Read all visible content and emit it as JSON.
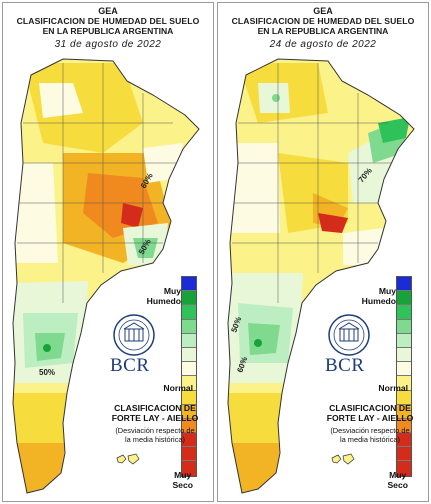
{
  "panels": [
    {
      "id": "left",
      "org": "GEA",
      "title_line1": "CLASIFICACION DE HUMEDAD DEL SUELO",
      "title_line2": "EN LA REPUBLICA ARGENTINA",
      "date": "31 de agosto de 2022",
      "contour_labels": [
        "60%",
        "50%",
        "50%"
      ]
    },
    {
      "id": "right",
      "org": "GEA",
      "title_line1": "CLASIFICACION DE HUMEDAD DEL SUELO",
      "title_line2": "EN LA REPUBLICA ARGENTINA",
      "date": "24 de agosto de 2022",
      "contour_labels": [
        "70%",
        "50%",
        "60%"
      ]
    }
  ],
  "legend": {
    "top_label_line1": "Muy",
    "top_label_line2": "Humedo",
    "middle_label": "Normal",
    "bottom_label_line1": "Muy",
    "bottom_label_line2": "Seco",
    "colors": [
      "#1b2bd6",
      "#17a23a",
      "#2fc25a",
      "#7fd98e",
      "#bdeec2",
      "#e8f7d8",
      "#fdfbe2",
      "#fbf28a",
      "#f6dd3d",
      "#f2b424",
      "#f08a1e",
      "#d42c1a"
    ]
  },
  "classification": {
    "line1": "CLASIFICACION DE",
    "line2": "FORTE LAY - AIELLO",
    "note_line1": "(Desviación respecto de",
    "note_line2": "la media histórica)"
  },
  "logo_text": "BCR"
}
